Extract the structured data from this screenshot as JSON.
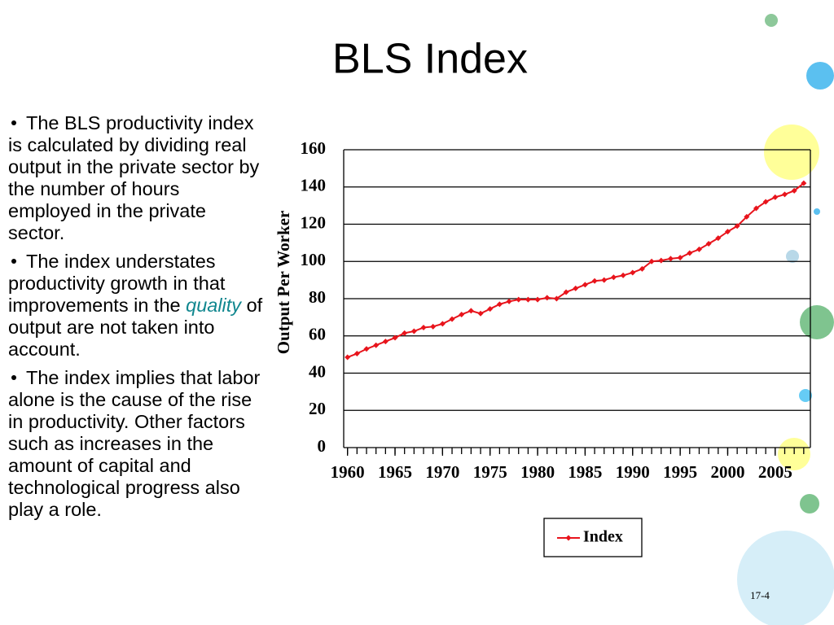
{
  "title": "BLS Index",
  "bullets": [
    [
      "The BLS productivity index is calculated by dividing real output in the private sector by the number of hours employed in the private sector."
    ],
    [
      "The index understates productivity growth in that improvements in the ",
      "quality",
      " of output are not taken into account."
    ],
    [
      "The index implies that labor alone is the cause of the rise in productivity. Other factors such as increases in the amount of capital and technological progress also play a role."
    ]
  ],
  "page_number": "17-4",
  "chart_data": {
    "type": "line",
    "y_label": "Output Per Worker",
    "x": [
      1960,
      1961,
      1962,
      1963,
      1964,
      1965,
      1966,
      1967,
      1968,
      1969,
      1970,
      1971,
      1972,
      1973,
      1974,
      1975,
      1976,
      1977,
      1978,
      1979,
      1980,
      1981,
      1982,
      1983,
      1984,
      1985,
      1986,
      1987,
      1988,
      1989,
      1990,
      1991,
      1992,
      1993,
      1994,
      1995,
      1996,
      1997,
      1998,
      1999,
      2000,
      2001,
      2002,
      2003,
      2004,
      2005,
      2006,
      2007,
      2008
    ],
    "series": [
      {
        "name": "Index",
        "color": "#e8141c",
        "values": [
          48.5,
          50.5,
          53,
          55,
          57,
          59,
          61.5,
          62.5,
          64.5,
          65,
          66.5,
          69,
          71.5,
          73.5,
          72,
          74.5,
          77,
          78.5,
          79.5,
          79.5,
          79.5,
          80.5,
          80,
          83.5,
          85.5,
          87.5,
          89.5,
          90,
          91.5,
          92.5,
          94,
          96,
          100,
          100.5,
          101.5,
          102,
          104.5,
          106.5,
          109.5,
          112.5,
          116,
          119,
          124,
          128.5,
          132,
          134.5,
          136,
          138,
          142
        ]
      }
    ],
    "xlim": [
      1959.6,
      2008.7
    ],
    "xticks": [
      1960,
      1965,
      1970,
      1975,
      1980,
      1985,
      1990,
      1995,
      2000,
      2005
    ],
    "ylim": [
      0,
      160
    ],
    "yticks": [
      0,
      20,
      40,
      60,
      80,
      100,
      120,
      140,
      160
    ],
    "grid": true,
    "legend": "bottom"
  }
}
